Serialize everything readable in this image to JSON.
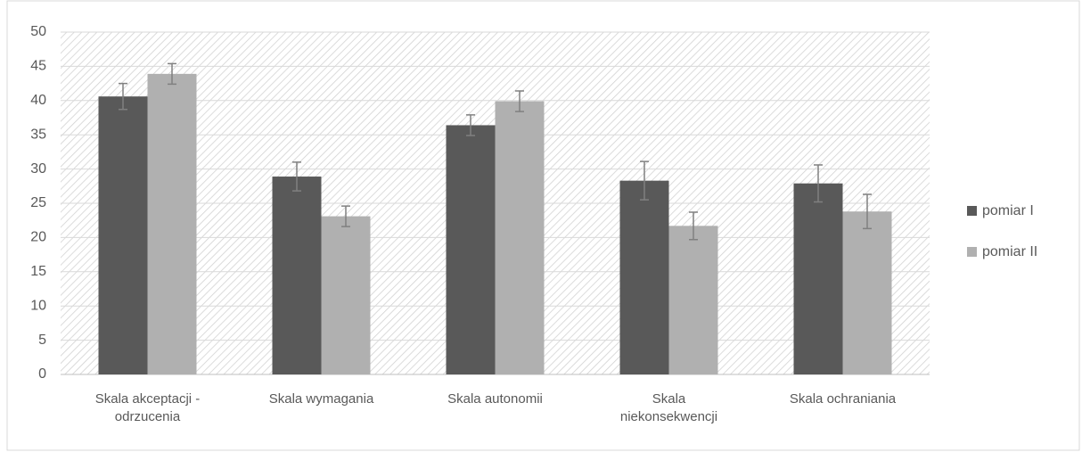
{
  "chart_data": {
    "type": "bar",
    "categories": [
      "Skala akceptacji - odrzucenia",
      "Skala wymagania",
      "Skala autonomii",
      "Skala niekonsekwencji",
      "Skala ochraniania"
    ],
    "series": [
      {
        "name": "pomiar I",
        "color": "#595959",
        "values": [
          40.6,
          28.9,
          36.4,
          28.3,
          27.9
        ],
        "errors": [
          1.9,
          2.1,
          1.5,
          2.8,
          2.7
        ]
      },
      {
        "name": "pomiar II",
        "color": "#b0b0b0",
        "values": [
          43.9,
          23.1,
          39.9,
          21.7,
          23.8
        ],
        "errors": [
          1.5,
          1.5,
          1.5,
          2.0,
          2.5
        ]
      }
    ],
    "ylim": [
      0,
      50
    ],
    "yticks": [
      0,
      5,
      10,
      15,
      20,
      25,
      30,
      35,
      40,
      45,
      50
    ],
    "grid": true,
    "legend": "right"
  }
}
